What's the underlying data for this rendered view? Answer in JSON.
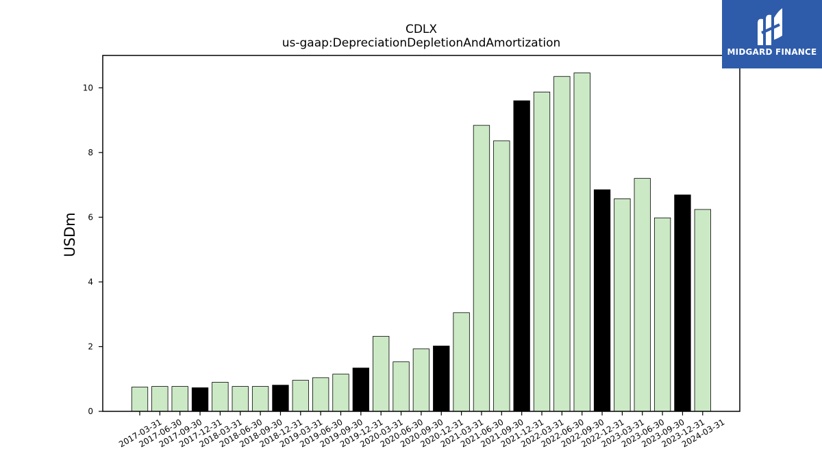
{
  "chart_data": {
    "type": "bar",
    "title": "CDLX",
    "subtitle": "us-gaap:DepreciationDepletionAndAmortization",
    "xlabel": "",
    "ylabel": "USDm",
    "ylim": [
      0,
      11
    ],
    "yticks": [
      0,
      2,
      4,
      6,
      8,
      10
    ],
    "grid": false,
    "colors": {
      "quarter": "#cce9c6",
      "year_end": "#000000",
      "edge": "#000000"
    },
    "categories": [
      "2017-03-31",
      "2017-06-30",
      "2017-09-30",
      "2017-12-31",
      "2018-03-31",
      "2018-06-30",
      "2018-09-30",
      "2018-12-31",
      "2019-03-31",
      "2019-06-30",
      "2019-09-30",
      "2019-12-31",
      "2020-03-31",
      "2020-06-30",
      "2020-09-30",
      "2020-12-31",
      "2021-03-31",
      "2021-06-30",
      "2021-09-30",
      "2021-12-31",
      "2022-03-31",
      "2022-06-30",
      "2022-09-30",
      "2022-12-31",
      "2023-03-31",
      "2023-06-30",
      "2023-09-30",
      "2023-12-31",
      "2024-03-31"
    ],
    "values": [
      0.75,
      0.77,
      0.77,
      0.73,
      0.9,
      0.77,
      0.77,
      0.81,
      0.96,
      1.04,
      1.15,
      1.34,
      2.32,
      1.53,
      1.93,
      2.02,
      3.05,
      8.84,
      8.36,
      9.6,
      9.87,
      10.35,
      10.46,
      6.85,
      6.57,
      7.2,
      5.98,
      6.69,
      6.24
    ]
  },
  "logo": {
    "text": "MIDGARD FINANCE",
    "icon": "midgard-logo-icon"
  }
}
